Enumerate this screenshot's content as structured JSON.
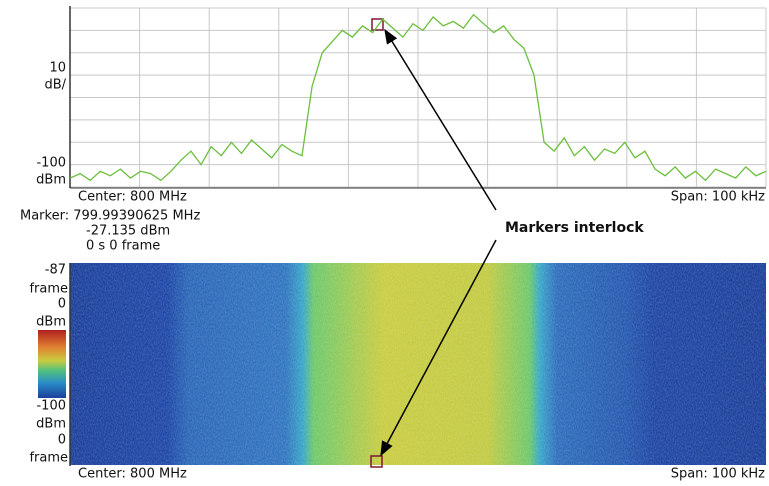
{
  "spectrum": {
    "y_top_label": [
      "10",
      "dB/"
    ],
    "y_bottom_label": [
      "-100",
      "dBm"
    ],
    "ylim": [
      -100,
      -20
    ],
    "trace": [
      -96,
      -94,
      -97,
      -93,
      -95,
      -92,
      -96,
      -93,
      -94,
      -97,
      -93,
      -88,
      -84,
      -90,
      -82,
      -86,
      -80,
      -85,
      -79,
      -83,
      -87,
      -81,
      -84,
      -86,
      -55,
      -40,
      -35,
      -30,
      -33,
      -28,
      -31,
      -25,
      -29,
      -33,
      -27,
      -30,
      -24,
      -28,
      -26,
      -29,
      -23,
      -27,
      -31,
      -28,
      -34,
      -38,
      -50,
      -80,
      -84,
      -78,
      -86,
      -82,
      -88,
      -83,
      -85,
      -80,
      -87,
      -84,
      -92,
      -95,
      -91,
      -96,
      -93,
      -97,
      -92,
      -94,
      -96,
      -91,
      -95,
      -93
    ],
    "center": "Center: 800 MHz",
    "span": "Span: 100 kHz"
  },
  "marker": {
    "frequency": "Marker: 799.99390625 MHz",
    "level": "-27.135 dBm",
    "time": "0 s  0 frame"
  },
  "callout": "Markers interlock",
  "spectrogram": {
    "top_labels": [
      "-87",
      "frame",
      "0",
      "dBm"
    ],
    "bottom_labels": [
      "-100",
      "dBm",
      "0",
      "frame"
    ],
    "center": "Center: 800 MHz",
    "span": "Span: 100 kHz"
  }
}
